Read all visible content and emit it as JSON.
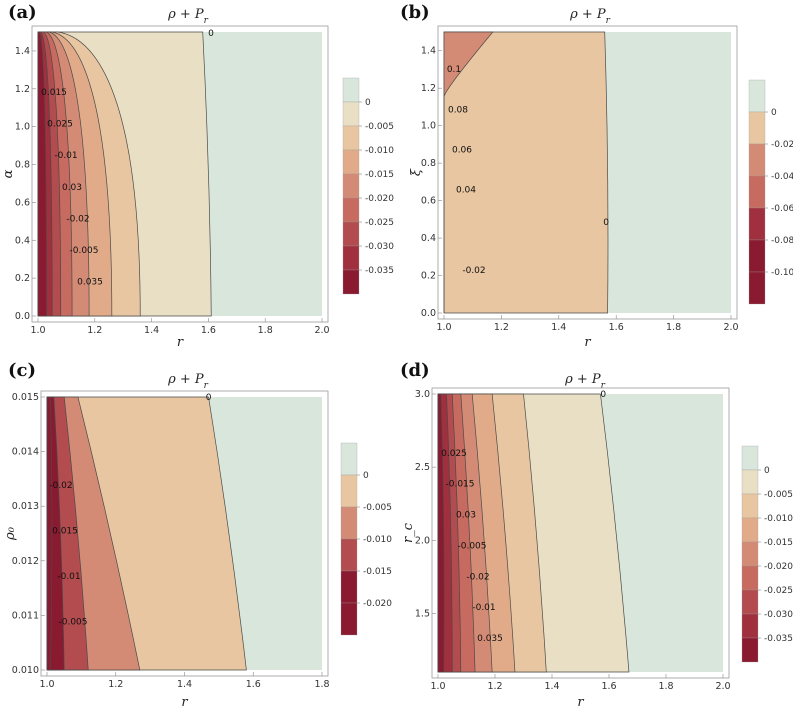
{
  "chart_data": [
    {
      "panel": "(a)",
      "type": "heatmap",
      "title": "ρ + P_r",
      "title_main": "ρ + P",
      "title_sub": "r",
      "xlabel": "r",
      "ylabel": "α",
      "xlim": [
        1.0,
        2.0
      ],
      "ylim": [
        0.0,
        1.5
      ],
      "xticks": [
        "1.0",
        "1.2",
        "1.4",
        "1.6",
        "1.8",
        "2.0"
      ],
      "yticks": [
        "0.0",
        "0.2",
        "0.4",
        "0.6",
        "0.8",
        "1.0",
        "1.2",
        "1.4"
      ],
      "legend": [
        "0",
        "-0.005",
        "-0.010",
        "-0.015",
        "-0.020",
        "-0.025",
        "-0.030",
        "-0.035"
      ],
      "contour_labels": [
        "0",
        "0.015",
        "0.025",
        "-0.01",
        "0.03",
        "-0.02",
        "-0.005",
        "0.035"
      ],
      "zero_contour_r": [
        1.61,
        1.58
      ],
      "contour_r_at_ymin": [
        1.61,
        1.36,
        1.26,
        1.18,
        1.12,
        1.08,
        1.05,
        1.03
      ],
      "contour_r_at_ymax": [
        1.58,
        1.07,
        1.05,
        1.04,
        1.03,
        1.02,
        1.01,
        1.005
      ]
    },
    {
      "panel": "(b)",
      "type": "heatmap",
      "title": "ρ + P_r",
      "title_main": "ρ + P",
      "title_sub": "r",
      "xlabel": "r",
      "ylabel": "ξ",
      "xlim": [
        1.0,
        2.0
      ],
      "ylim": [
        0.0,
        1.5
      ],
      "xticks": [
        "1.0",
        "1.2",
        "1.4",
        "1.6",
        "1.8",
        "2.0"
      ],
      "yticks": [
        "0.0",
        "0.2",
        "0.4",
        "0.6",
        "0.8",
        "1.0",
        "1.2",
        "1.4"
      ],
      "legend": [
        "0",
        "-0.02",
        "-0.04",
        "-0.06",
        "-0.08",
        "-0.10"
      ],
      "contour_labels": [
        "0.1",
        "0.08",
        "0.06",
        "0.04",
        "0",
        "-0.02"
      ],
      "zero_contour_r": [
        1.57,
        1.56
      ],
      "contour_r_at_ymin": [
        1.57,
        1.02
      ],
      "contour_r_at_ymax": [
        1.56,
        1.17,
        1.1,
        1.06,
        1.03
      ]
    },
    {
      "panel": "(c)",
      "type": "heatmap",
      "title": "ρ + P_r",
      "title_main": "ρ + P",
      "title_sub": "r",
      "xlabel": "r",
      "ylabel": "ρ₀",
      "xlim": [
        1.0,
        1.8
      ],
      "ylim": [
        0.01,
        0.015
      ],
      "xticks": [
        "1.0",
        "1.2",
        "1.4",
        "1.6",
        "1.8"
      ],
      "yticks": [
        "0.010",
        "0.011",
        "0.012",
        "0.013",
        "0.014",
        "0.015"
      ],
      "legend": [
        "0",
        "-0.005",
        "-0.010",
        "-0.015",
        "-0.020"
      ],
      "contour_labels": [
        "0",
        "-0.02",
        "0.015",
        "-0.01",
        "-0.005"
      ],
      "contour_r_at_ymin": [
        1.58,
        1.27,
        1.12,
        1.05,
        1.01
      ],
      "contour_r_at_ymax": [
        1.47,
        1.09,
        1.05,
        1.02
      ]
    },
    {
      "panel": "(d)",
      "type": "heatmap",
      "title": "ρ + P_r",
      "title_main": "ρ + P",
      "title_sub": "r",
      "xlabel": "r",
      "ylabel": "r_c",
      "xlim": [
        1.0,
        2.0
      ],
      "ylim": [
        1.1,
        3.0
      ],
      "xticks": [
        "1.0",
        "1.2",
        "1.4",
        "1.6",
        "1.8",
        "2.0"
      ],
      "yticks": [
        "1.5",
        "2.0",
        "2.5",
        "3.0"
      ],
      "legend": [
        "0",
        "-0.005",
        "-0.010",
        "-0.015",
        "-0.020",
        "-0.025",
        "-0.030",
        "-0.035"
      ],
      "contour_labels": [
        "0",
        "0.025",
        "-0.015",
        "0.03",
        "-0.005",
        "-0.02",
        "-0.01",
        "0.035"
      ],
      "contour_r_at_ymin": [
        1.67,
        1.38,
        1.27,
        1.19,
        1.13,
        1.08,
        1.05,
        1.02
      ],
      "contour_r_at_ymax": [
        1.57,
        1.3,
        1.19,
        1.12,
        1.08,
        1.05,
        1.03,
        1.01
      ]
    }
  ],
  "colors": {
    "level_0": "#d9e6dc",
    "level_1": "#e8dfc5",
    "level_2": "#e7c6a1",
    "level_3": "#e1ab8a",
    "level_4": "#d48b75",
    "level_5": "#c76a60",
    "level_6": "#b24c4f",
    "level_7": "#a0303e",
    "level_8": "#8a1a30",
    "contour": "#4a4a4a"
  }
}
